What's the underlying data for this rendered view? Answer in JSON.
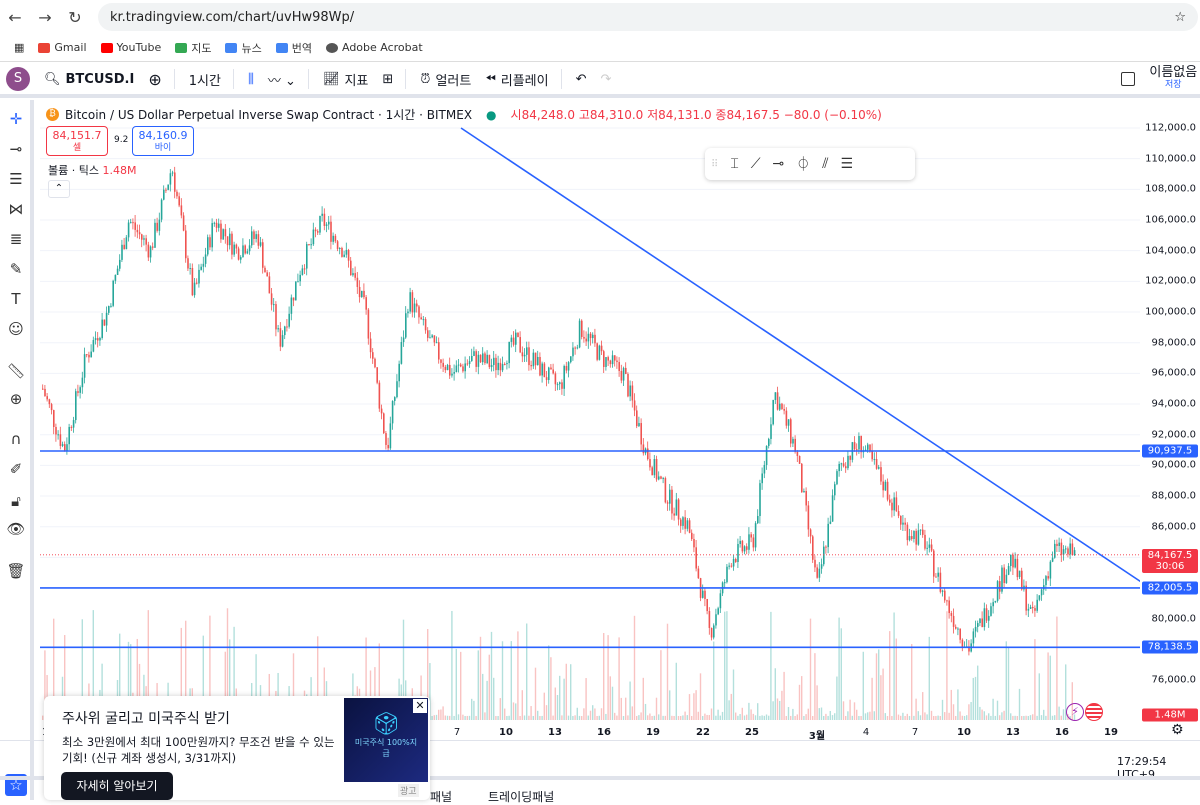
{
  "browser": {
    "url": "kr.tradingview.com/chart/uvHw98Wp/",
    "bookmarks": [
      {
        "label": "Gmail",
        "color": "#ea4335"
      },
      {
        "label": "YouTube",
        "color": "#ff0000"
      },
      {
        "label": "지도",
        "color": "#34a853"
      },
      {
        "label": "뉴스",
        "color": "#4285f4"
      },
      {
        "label": "번역",
        "color": "#4285f4"
      },
      {
        "label": "Adobe Acrobat",
        "color": "#555555"
      }
    ]
  },
  "toolbar": {
    "avatar": "S",
    "symbol": "BTCUSD.I",
    "interval": "1시간",
    "indicators": "지표",
    "alert": "얼러트",
    "replay": "리플레이",
    "layout_name": "이름없음",
    "save": "저장"
  },
  "legend": {
    "title": "Bitcoin / US Dollar Perpetual Inverse Swap Contract · 1시간 · BITMEX",
    "ohlc": "시84,248.0 고84,310.0 저84,131.0 종84,167.5 −80.0 (−0.10%)",
    "sell_price": "84,151.7",
    "sell_label": "셀",
    "spread": "9.2",
    "buy_price": "84,160.9",
    "buy_label": "바이",
    "volume": "볼륨 · 틱스",
    "volume_value": "1.48M"
  },
  "price_axis": {
    "ticks": [
      "112,000.0",
      "110,000.0",
      "108,000.0",
      "106,000.0",
      "104,000.0",
      "102,000.0",
      "100,000.0",
      "98,000.0",
      "96,000.0",
      "94,000.0",
      "92,000.0",
      "90,000.0",
      "88,000.0",
      "86,000.0",
      "80,000.0",
      "76,000.0"
    ],
    "tick_values": [
      112000,
      110000,
      108000,
      106000,
      104000,
      102000,
      100000,
      98000,
      96000,
      94000,
      92000,
      90000,
      88000,
      86000,
      80000,
      76000
    ],
    "current_price": "84,167.5",
    "countdown": "30:06",
    "volume_label": "1.48M",
    "levels": [
      {
        "label": "90,937.5",
        "value": 90937.5
      },
      {
        "label": "82,005.5",
        "value": 82005.5
      },
      {
        "label": "78,138.5",
        "value": 78138.5
      }
    ]
  },
  "time_axis": {
    "labels": [
      "1",
      "7",
      "10",
      "13",
      "16",
      "19",
      "22",
      "25",
      "3월",
      "4",
      "7",
      "10",
      "13",
      "16",
      "19"
    ]
  },
  "clock": "17:29:54 UTC+9",
  "colors": {
    "up": "#26a69a",
    "down": "#ef5350",
    "line": "#2962ff",
    "label": "#2962ff",
    "current": "#f23645"
  },
  "price_path": [
    [
      95000,
      94000
    ],
    [
      91000,
      89000
    ],
    [
      97000,
      96000
    ],
    [
      100000,
      99000
    ],
    [
      106000,
      108000
    ],
    [
      104000,
      103000
    ],
    [
      109500,
      110000
    ],
    [
      101000,
      100000
    ],
    [
      106000,
      107000
    ],
    [
      104000,
      104500
    ],
    [
      105000,
      104000
    ],
    [
      98000,
      97500
    ],
    [
      103000,
      104000
    ],
    [
      106000,
      106500
    ],
    [
      104000,
      103000
    ],
    [
      100000,
      99000
    ],
    [
      91000,
      94000
    ],
    [
      101000,
      102000
    ],
    [
      98000,
      97000
    ],
    [
      96000,
      96500
    ],
    [
      97000,
      97500
    ],
    [
      96500,
      96000
    ],
    [
      98000,
      98500
    ],
    [
      96500,
      96000
    ],
    [
      95000,
      94000
    ],
    [
      99000,
      99500
    ],
    [
      97000,
      96500
    ],
    [
      96000,
      95500
    ],
    [
      91000,
      89000
    ],
    [
      88000,
      87000
    ],
    [
      86000,
      85000
    ],
    [
      79000,
      78500
    ],
    [
      84000,
      84500
    ],
    [
      85000,
      85000
    ],
    [
      94800,
      95000
    ],
    [
      91000,
      90000
    ],
    [
      82000,
      82000
    ],
    [
      90000,
      90500
    ],
    [
      91500,
      92000
    ],
    [
      89000,
      88000
    ],
    [
      86000,
      86000
    ],
    [
      85000,
      84000
    ],
    [
      81000,
      80000
    ],
    [
      78000,
      77000
    ],
    [
      81000,
      82000
    ],
    [
      84000,
      84500
    ],
    [
      80000,
      80000
    ],
    [
      84500,
      85000
    ],
    [
      84200,
      84167
    ]
  ],
  "ad": {
    "title": "주사위 굴리고 미국주식 받기",
    "body": "최소 3만원에서 최대 100만원까지? 무조건 받을 수 있는 기회! (신규 계좌 생성시, 3/31까지)",
    "cta": "자세히 알아보기",
    "image_text": "미국주식 100%지급",
    "ad_tag": "광고"
  },
  "bottom_tabs": [
    "패널",
    "트레이딩패널"
  ]
}
